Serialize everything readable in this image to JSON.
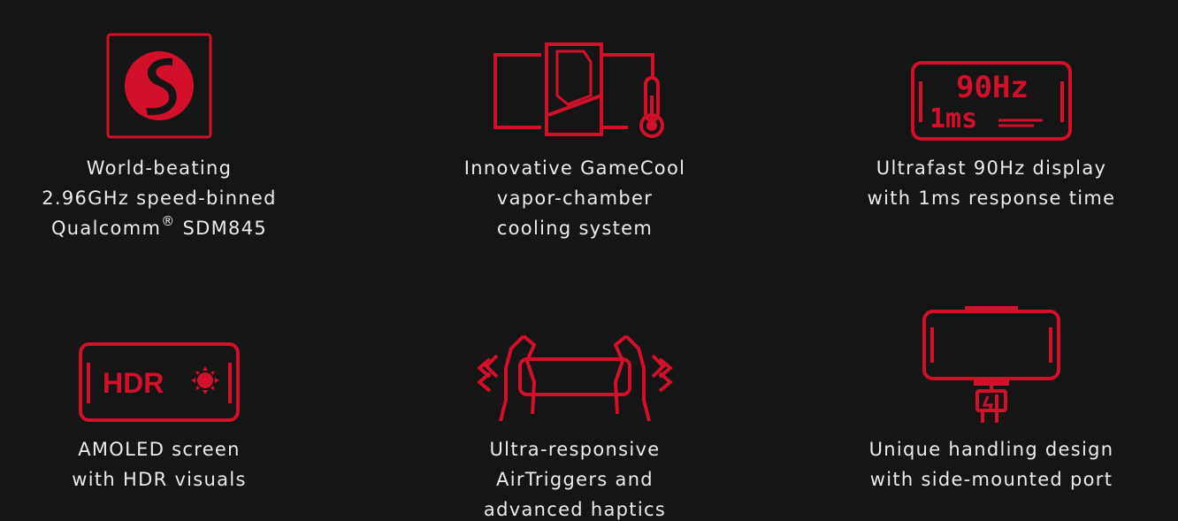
{
  "colors": {
    "background": "#151515",
    "accent": "#d3102b",
    "text": "#ececec"
  },
  "features": [
    {
      "icon": "snapdragon-chip-icon",
      "lines": [
        "World-beating",
        "2.96GHz speed-binned",
        "Qualcomm",
        "SDM845"
      ],
      "mark": "®"
    },
    {
      "icon": "gamecool-thermometer-icon",
      "lines": [
        "Innovative GameCool",
        "vapor-chamber",
        "cooling system"
      ]
    },
    {
      "icon": "90hz-display-icon",
      "icon_text": {
        "top": "90Hz",
        "bottom": "1ms"
      },
      "lines": [
        "Ultrafast 90Hz display",
        "with 1ms response time"
      ]
    },
    {
      "icon": "hdr-screen-icon",
      "icon_text": {
        "label": "HDR"
      },
      "lines": [
        "AMOLED screen",
        "with HDR visuals"
      ]
    },
    {
      "icon": "airtriggers-hands-icon",
      "lines": [
        "Ultra-responsive",
        "AirTriggers and",
        "advanced haptics"
      ]
    },
    {
      "icon": "side-port-phone-icon",
      "lines": [
        "Unique handling design",
        "with side-mounted port"
      ]
    }
  ]
}
